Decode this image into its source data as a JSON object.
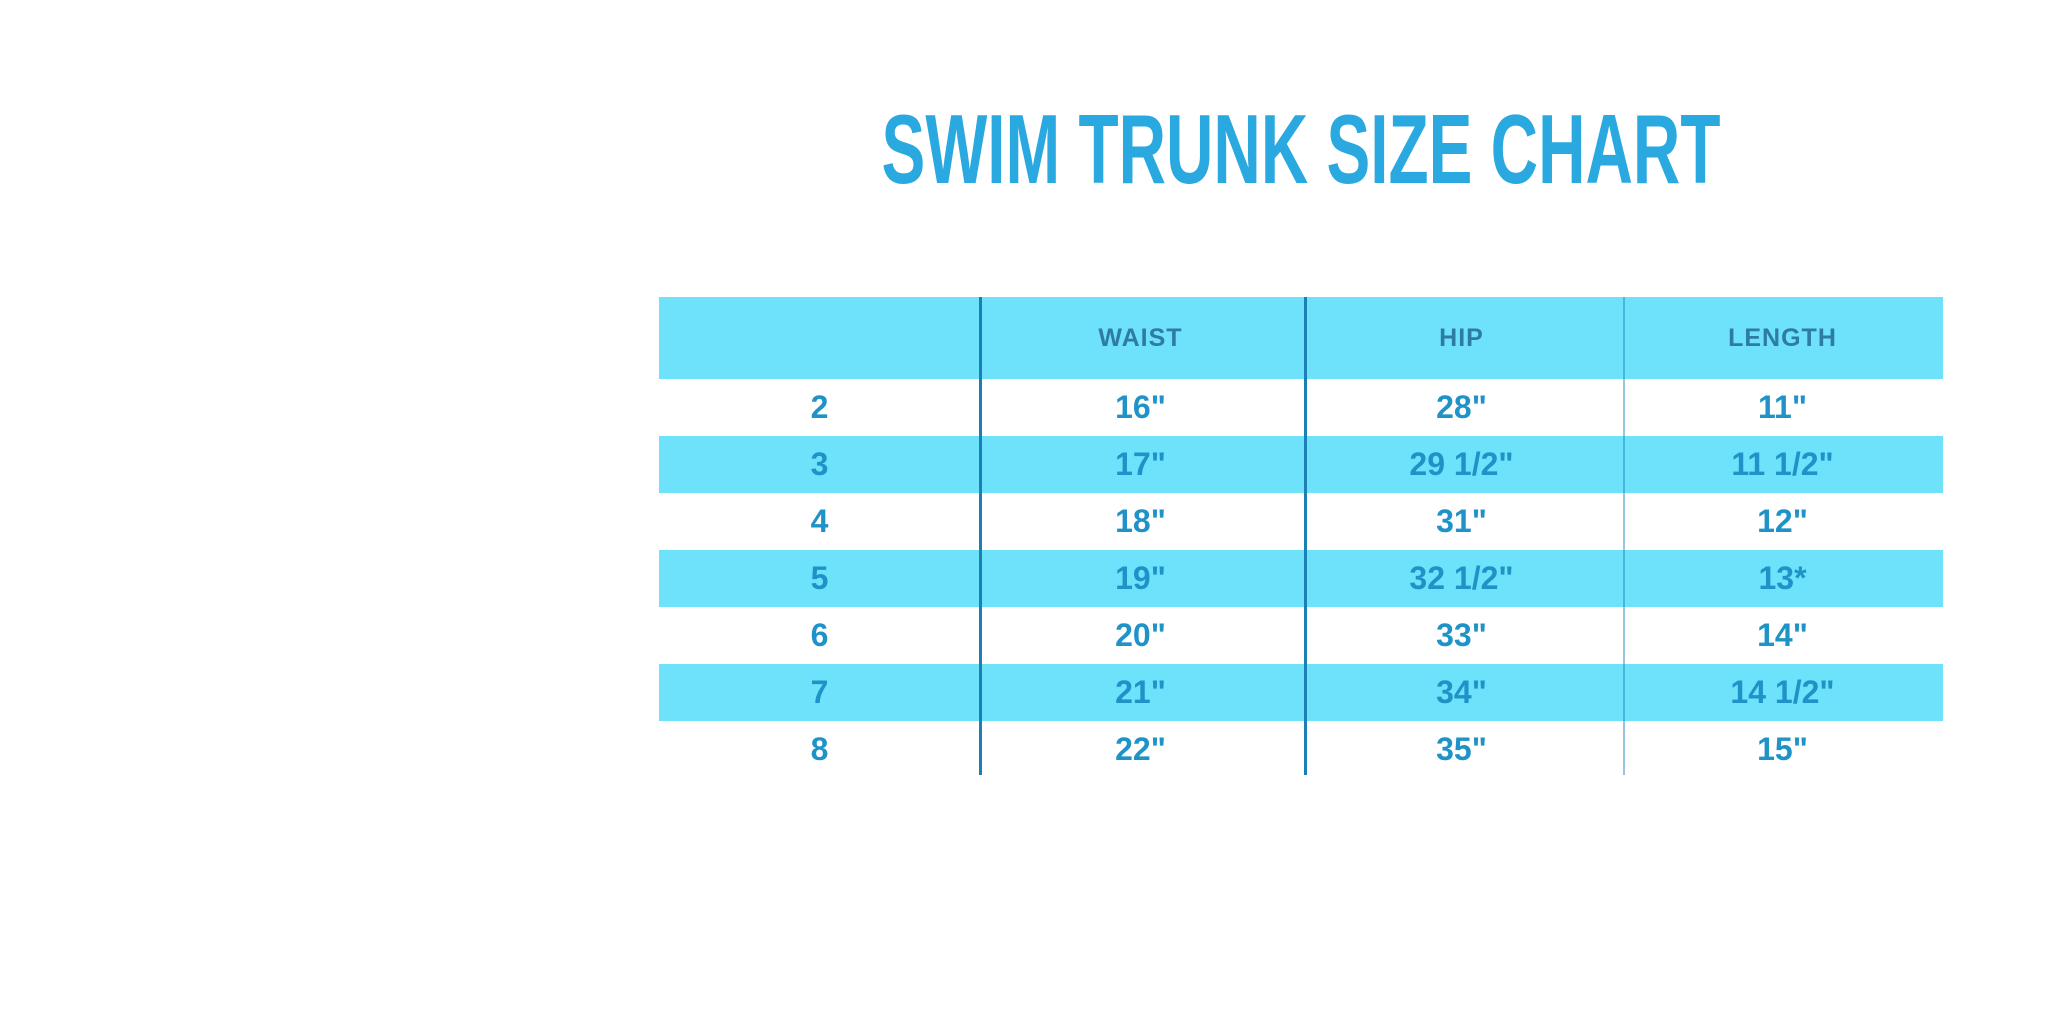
{
  "title": {
    "text": "SWIM TRUNK SIZE CHART"
  },
  "colors": {
    "title_blue": "#29a9e0",
    "band_cyan": "#6de2fa",
    "header_text": "#2e7ba4",
    "cell_text": "#1f93c8",
    "divider_dark": "#1a80b5",
    "divider_light": "rgba(26,128,181,0.45)",
    "background": "#ffffff"
  },
  "chart_data": {
    "type": "table",
    "title": "SWIM TRUNK SIZE CHART",
    "columns": [
      "",
      "WAIST",
      "HIP",
      "LENGTH"
    ],
    "rows": [
      [
        "2",
        "16\"",
        "28\"",
        "11\""
      ],
      [
        "3",
        "17\"",
        "29 1/2\"",
        "11 1/2\""
      ],
      [
        "4",
        "18\"",
        "31\"",
        "12\""
      ],
      [
        "5",
        "19\"",
        "32 1/2\"",
        "13*"
      ],
      [
        "6",
        "20\"",
        "33\"",
        "14\""
      ],
      [
        "7",
        "21\"",
        "34\"",
        "14 1/2\""
      ],
      [
        "8",
        "22\"",
        "35\"",
        "15\""
      ]
    ],
    "layout": {
      "banded_rows": true,
      "banded_row_sizes": [
        "3",
        "5",
        "7"
      ],
      "header_band": true,
      "grid": "vertical-dividers-only"
    }
  }
}
